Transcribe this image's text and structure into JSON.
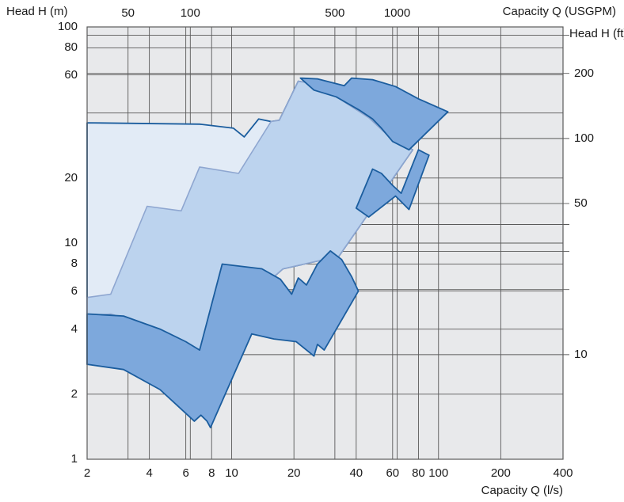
{
  "chart_data": {
    "type": "area",
    "x_bottom": {
      "label": "Capacity Q (l/s)",
      "scale": "log",
      "range": [
        2,
        400
      ],
      "ticks": [
        2,
        4,
        6,
        8,
        10,
        20,
        40,
        60,
        80,
        100,
        200,
        400
      ],
      "tick_labels": [
        "2",
        "4",
        "6",
        "8",
        "10",
        "20",
        "40",
        "60",
        "80",
        "100",
        "200",
        "400"
      ]
    },
    "x_top": {
      "label": "Capacity Q (USGPM)",
      "scale": "log",
      "ticks": [
        50,
        100,
        500,
        1000
      ],
      "tick_labels": [
        "50",
        "100",
        "500",
        "1000"
      ]
    },
    "y_left": {
      "label": "Head H (m)",
      "scale": "log",
      "range": [
        1,
        100
      ],
      "ticks": [
        1,
        2,
        4,
        6,
        8,
        10,
        20,
        40,
        60,
        80,
        100
      ],
      "tick_labels": [
        "1",
        "2",
        "4",
        "6",
        "8",
        "10",
        "20",
        "",
        "60",
        "80",
        "100"
      ]
    },
    "y_right": {
      "label": "Head H (ft)",
      "scale": "log",
      "ticks": [
        10,
        50,
        100,
        200
      ],
      "tick_labels": [
        "10",
        "50",
        "100",
        "200"
      ]
    },
    "grid": true,
    "colors": {
      "background": "#e8e9eb",
      "grid": "#5a5a5a",
      "outline_dark": "#1b5d9e",
      "outline_light": "#8ea6d0",
      "fill_dark": "#7da8dc",
      "fill_mid": "#bcd3ee",
      "fill_light": "#e2ebf6"
    },
    "series": [
      {
        "style": "light",
        "points": [
          [
            2,
            2.75
          ],
          [
            2,
            36
          ],
          [
            7,
            35.5
          ],
          [
            10.2,
            34
          ],
          [
            11.5,
            31
          ],
          [
            13.5,
            37.5
          ],
          [
            15.5,
            36.5
          ],
          [
            17,
            37
          ],
          [
            21,
            56
          ],
          [
            27,
            54
          ],
          [
            35,
            45
          ],
          [
            46,
            38
          ],
          [
            60,
            30
          ],
          [
            75,
            27
          ],
          [
            33,
            8.7
          ],
          [
            17.7,
            7.6
          ],
          [
            11.8,
            5.4
          ],
          [
            8.2,
            3.6
          ],
          [
            7,
            3.2
          ],
          [
            5.6,
            3.4
          ],
          [
            4.1,
            4.1
          ],
          [
            2.6,
            4.7
          ],
          [
            2,
            4.6
          ],
          [
            2,
            2.75
          ]
        ]
      },
      {
        "style": "mid",
        "points": [
          [
            2,
            5.6
          ],
          [
            2.6,
            5.8
          ],
          [
            3.9,
            14.8
          ],
          [
            5.7,
            14.1
          ],
          [
            7,
            22.5
          ],
          [
            10.8,
            21
          ],
          [
            15.5,
            36.5
          ],
          [
            17,
            37
          ],
          [
            21,
            56
          ],
          [
            27,
            54
          ],
          [
            35,
            45
          ],
          [
            46,
            38
          ],
          [
            60,
            30
          ],
          [
            75,
            27
          ],
          [
            33,
            8.7
          ],
          [
            17.7,
            7.6
          ],
          [
            11.8,
            5.4
          ],
          [
            8.2,
            3.6
          ],
          [
            7,
            3.2
          ],
          [
            5.6,
            3.4
          ],
          [
            4.1,
            4.1
          ],
          [
            2.6,
            4.7
          ],
          [
            2,
            4.6
          ],
          [
            2,
            5.6
          ]
        ]
      },
      {
        "style": "dark",
        "points": [
          [
            2,
            2.75
          ],
          [
            2,
            4.7
          ],
          [
            3,
            4.6
          ],
          [
            4.5,
            4
          ],
          [
            6,
            3.5
          ],
          [
            7,
            3.2
          ],
          [
            9,
            8
          ],
          [
            14,
            7.6
          ],
          [
            17.2,
            6.8
          ],
          [
            19.5,
            5.8
          ],
          [
            21,
            6.9
          ],
          [
            23,
            6.4
          ],
          [
            26,
            8
          ],
          [
            30,
            9.2
          ],
          [
            34,
            8.4
          ],
          [
            38,
            7
          ],
          [
            41,
            6
          ],
          [
            28,
            3.2
          ],
          [
            26,
            3.4
          ],
          [
            25,
            3
          ],
          [
            20.5,
            3.5
          ],
          [
            16,
            3.6
          ],
          [
            12.5,
            3.8
          ],
          [
            7.9,
            1.4
          ],
          [
            7.6,
            1.5
          ],
          [
            7.1,
            1.6
          ],
          [
            6.6,
            1.5
          ],
          [
            4.5,
            2.1
          ],
          [
            3,
            2.6
          ],
          [
            2,
            2.75
          ]
        ]
      },
      {
        "style": "dark",
        "points": [
          [
            21.5,
            58
          ],
          [
            26,
            57.5
          ],
          [
            35,
            53.5
          ],
          [
            38,
            58
          ],
          [
            48,
            57
          ],
          [
            62,
            53
          ],
          [
            80,
            46.5
          ],
          [
            111,
            40.5
          ],
          [
            72,
            27
          ],
          [
            60,
            29.5
          ],
          [
            53,
            34
          ],
          [
            48,
            37.5
          ],
          [
            41.8,
            41
          ],
          [
            32,
            47.5
          ],
          [
            25,
            51
          ],
          [
            21.5,
            58
          ]
        ]
      },
      {
        "style": "dark",
        "points": [
          [
            40,
            14.5
          ],
          [
            48,
            22
          ],
          [
            53,
            21
          ],
          [
            60,
            18.5
          ],
          [
            66,
            17
          ],
          [
            80,
            27
          ],
          [
            90,
            25.5
          ],
          [
            72,
            14.3
          ],
          [
            62,
            16.5
          ],
          [
            46,
            13.2
          ],
          [
            40,
            14.5
          ]
        ]
      }
    ],
    "title": ""
  }
}
